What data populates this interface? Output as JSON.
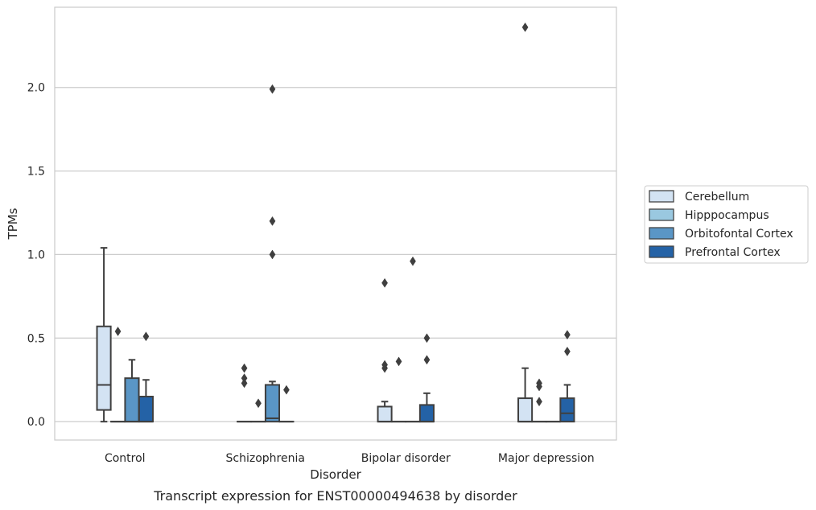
{
  "chart_data": {
    "type": "box",
    "xlabel": "Disorder",
    "ylabel": "TPMs",
    "caption": "Transcript expression for ENST00000494638 by disorder",
    "categories": [
      "Control",
      "Schizophrenia",
      "Bipolar disorder",
      "Major depression"
    ],
    "ylim": [
      -0.11,
      2.48
    ],
    "yticks": [
      0.0,
      0.5,
      1.0,
      1.5,
      2.0
    ],
    "ytick_labels": [
      "0.0",
      "0.5",
      "1.0",
      "1.5",
      "2.0"
    ],
    "grid": true,
    "legend_position": "right",
    "series": [
      {
        "name": "Cerebellum",
        "color": "#d3e3f3",
        "boxes": [
          {
            "q1": 0.07,
            "median": 0.22,
            "q3": 0.57,
            "whisker_low": 0.0,
            "whisker_high": 1.04,
            "outliers": []
          },
          {
            "q1": 0.0,
            "median": 0.0,
            "q3": 0.0,
            "whisker_low": 0.0,
            "whisker_high": 0.0,
            "outliers": [
              0.32,
              0.26,
              0.23
            ]
          },
          {
            "q1": 0.0,
            "median": 0.0,
            "q3": 0.09,
            "whisker_low": 0.0,
            "whisker_high": 0.12,
            "outliers": [
              0.83,
              0.34,
              0.32
            ]
          },
          {
            "q1": 0.0,
            "median": 0.0,
            "q3": 0.14,
            "whisker_low": 0.0,
            "whisker_high": 0.32,
            "outliers": [
              2.36
            ]
          }
        ]
      },
      {
        "name": "Hipppocampus",
        "color": "#9ac8e0",
        "boxes": [
          {
            "q1": 0.0,
            "median": 0.0,
            "q3": 0.0,
            "whisker_low": 0.0,
            "whisker_high": 0.0,
            "outliers": [
              0.54
            ]
          },
          {
            "q1": 0.0,
            "median": 0.0,
            "q3": 0.0,
            "whisker_low": 0.0,
            "whisker_high": 0.0,
            "outliers": [
              0.11
            ]
          },
          {
            "q1": 0.0,
            "median": 0.0,
            "q3": 0.0,
            "whisker_low": 0.0,
            "whisker_high": 0.0,
            "outliers": [
              0.36
            ]
          },
          {
            "q1": 0.0,
            "median": 0.0,
            "q3": 0.0,
            "whisker_low": 0.0,
            "whisker_high": 0.0,
            "outliers": [
              0.23,
              0.21,
              0.12
            ]
          }
        ]
      },
      {
        "name": "Orbitofontal Cortex",
        "color": "#5a96c6",
        "boxes": [
          {
            "q1": 0.0,
            "median": 0.0,
            "q3": 0.26,
            "whisker_low": 0.0,
            "whisker_high": 0.37,
            "outliers": []
          },
          {
            "q1": 0.0,
            "median": 0.02,
            "q3": 0.22,
            "whisker_low": 0.0,
            "whisker_high": 0.24,
            "outliers": [
              1.99,
              1.2,
              1.0
            ]
          },
          {
            "q1": 0.0,
            "median": 0.0,
            "q3": 0.0,
            "whisker_low": 0.0,
            "whisker_high": 0.0,
            "outliers": [
              0.96
            ]
          },
          {
            "q1": 0.0,
            "median": 0.0,
            "q3": 0.0,
            "whisker_low": 0.0,
            "whisker_high": 0.0,
            "outliers": []
          }
        ]
      },
      {
        "name": "Prefrontal Cortex",
        "color": "#2462a6",
        "boxes": [
          {
            "q1": 0.0,
            "median": 0.0,
            "q3": 0.15,
            "whisker_low": 0.0,
            "whisker_high": 0.25,
            "outliers": [
              0.51
            ]
          },
          {
            "q1": 0.0,
            "median": 0.0,
            "q3": 0.0,
            "whisker_low": 0.0,
            "whisker_high": 0.0,
            "outliers": [
              0.19
            ]
          },
          {
            "q1": 0.0,
            "median": 0.0,
            "q3": 0.1,
            "whisker_low": 0.0,
            "whisker_high": 0.17,
            "outliers": [
              0.5,
              0.37
            ]
          },
          {
            "q1": 0.0,
            "median": 0.05,
            "q3": 0.14,
            "whisker_low": 0.0,
            "whisker_high": 0.22,
            "outliers": [
              0.52,
              0.42
            ]
          }
        ]
      }
    ]
  }
}
